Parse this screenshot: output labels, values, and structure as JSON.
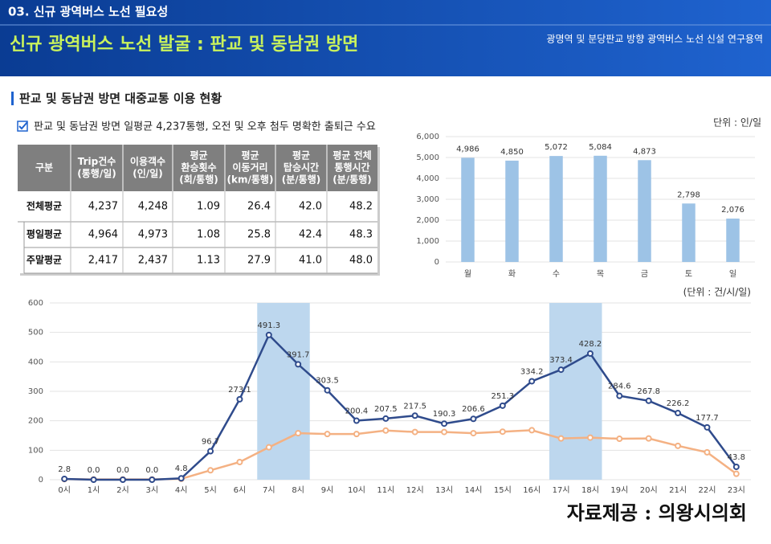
{
  "header": {
    "section": "03. 신규 광역버스 노선 필요성",
    "title": "신규 광역버스 노선 발굴 : 판교 및 동남권 방면",
    "subtitle": "광명역 및 분당판교 방향 광역버스 노선 신설 연구용역"
  },
  "heading": "판교 및 동남권 방면 대중교통 이용 현황",
  "bullet": "판교 및 동남권 방면 일평균 4,237통행, 오전 및 오후 첨두 명확한 출퇴근 수요",
  "table": {
    "header": [
      [
        "구분"
      ],
      [
        "Trip건수",
        "(통행/일)"
      ],
      [
        "이용객수",
        "(인/일)"
      ],
      [
        "평균",
        "환승횟수",
        "(회/통행)"
      ],
      [
        "평균",
        "이동거리",
        "(km/통행)"
      ],
      [
        "평균",
        "탑승시간",
        "(분/통행)"
      ],
      [
        "평균 전체",
        "통행시간",
        "(분/통행)"
      ]
    ],
    "rows": [
      [
        "전체평균",
        "4,237",
        "4,248",
        "1.09",
        "26.4",
        "42.0",
        "48.2"
      ],
      [
        "평일평균",
        "4,964",
        "4,973",
        "1.08",
        "25.8",
        "42.4",
        "48.3"
      ],
      [
        "주말평균",
        "2,417",
        "2,437",
        "1.13",
        "27.9",
        "41.0",
        "48.0"
      ]
    ]
  },
  "chart_data": [
    {
      "type": "bar",
      "unit": "단위 : 인/일",
      "categories": [
        "월",
        "화",
        "수",
        "목",
        "금",
        "토",
        "일"
      ],
      "values": [
        4986,
        4850,
        5072,
        5084,
        4873,
        2798,
        2076
      ],
      "value_labels": [
        "4,986",
        "4,850",
        "5,072",
        "5,084",
        "4,873",
        "2,798",
        "2,076"
      ],
      "color": "#9dc3e6",
      "ylim": [
        0,
        6000
      ],
      "yticks": [
        0,
        {
          "value": 1000,
          "label": "1,000"
        },
        {
          "value": 2000,
          "label": "2,000"
        },
        {
          "value": 3000,
          "label": "3,000"
        },
        {
          "value": 4000,
          "label": "4,000"
        },
        {
          "value": 5000,
          "label": "5,000"
        },
        {
          "value": 6000,
          "label": "6,000"
        }
      ],
      "grid": true
    },
    {
      "type": "line",
      "unit": "(단위 : 건/시/일)",
      "categories": [
        "0시",
        "1시",
        "2시",
        "3시",
        "4시",
        "5시",
        "6시",
        "7시",
        "8시",
        "9시",
        "10시",
        "11시",
        "12시",
        "13시",
        "14시",
        "15시",
        "16시",
        "17시",
        "18시",
        "19시",
        "20시",
        "21시",
        "22시",
        "23시"
      ],
      "series": [
        {
          "color": "#2f4b8c",
          "values": [
            2.8,
            0,
            0,
            0,
            4.8,
            96.7,
            273.1,
            491.3,
            391.7,
            303.5,
            200.4,
            207.5,
            217.5,
            190.3,
            206.6,
            251.3,
            334.2,
            373.4,
            428.2,
            284.6,
            267.8,
            226.2,
            177.7,
            43.8
          ],
          "value_labels": [
            "2.8",
            "0.0",
            "0.0",
            "0.0",
            "4.8",
            "96.7",
            "273.1",
            "491.3",
            "391.7",
            "303.5",
            "200.4",
            "207.5",
            "217.5",
            "190.3",
            "206.6",
            "251.3",
            "334.2",
            "373.4",
            "428.2",
            "284.6",
            "267.8",
            "226.2",
            "177.7",
            "43.8"
          ]
        },
        {
          "color": "#f4b183",
          "values": [
            2,
            1,
            1,
            1,
            3,
            32,
            60,
            110,
            158,
            155,
            155,
            167,
            162,
            162,
            158,
            163,
            168,
            140,
            143,
            139,
            140,
            115,
            93,
            20
          ]
        }
      ],
      "highlight": [
        [
          7,
          8
        ],
        [
          17,
          18
        ]
      ],
      "highlight_color": "#bdd7ee",
      "ylim": [
        0,
        600
      ],
      "yticks": [
        0,
        100,
        200,
        300,
        400,
        500,
        600
      ],
      "grid": true
    }
  ],
  "source": "자료제공 : 의왕시의회"
}
